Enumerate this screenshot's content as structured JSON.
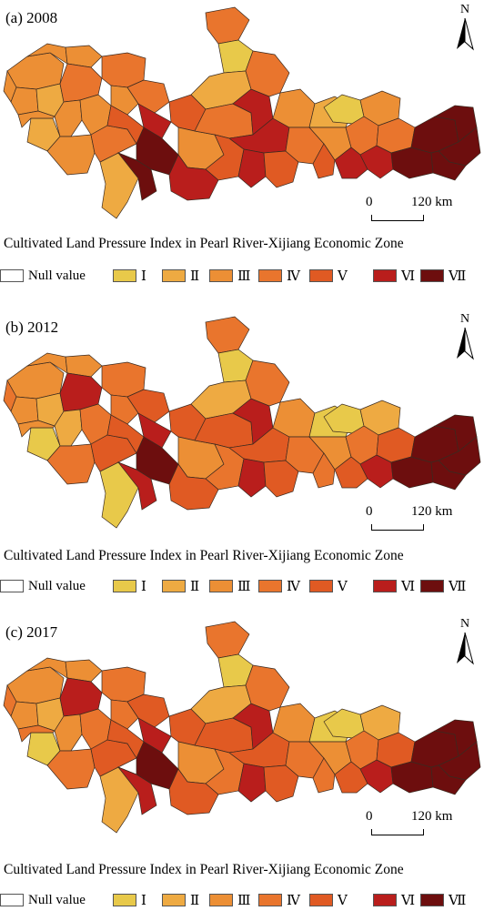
{
  "panels": [
    {
      "label": "(a) 2008",
      "north": "N",
      "scale": {
        "zero": "0",
        "distance": "120 km"
      },
      "title": "Cultivated Land Pressure Index in Pearl River-Xijiang Economic Zone",
      "regions": [
        3,
        3,
        3,
        3,
        2,
        3,
        4,
        2,
        3,
        3,
        3,
        2,
        3,
        4,
        4,
        3,
        4,
        5,
        6,
        7,
        7,
        5,
        4,
        1,
        2,
        3,
        4,
        5,
        6,
        6,
        4,
        6,
        6,
        5,
        3,
        4,
        2,
        1,
        3,
        3,
        4,
        4,
        5,
        6,
        6,
        7,
        7,
        7,
        7,
        7
      ]
    },
    {
      "label": "(b) 2012",
      "north": "N",
      "scale": {
        "zero": "0",
        "distance": "120 km"
      },
      "title": "Cultivated Land Pressure Index in Pearl River-Xijiang Economic Zone",
      "regions": [
        3,
        3,
        4,
        3,
        2,
        3,
        6,
        1,
        3,
        2,
        4,
        1,
        4,
        5,
        4,
        4,
        5,
        5,
        6,
        7,
        6,
        5,
        4,
        1,
        2,
        3,
        5,
        4,
        5,
        6,
        4,
        5,
        6,
        5,
        3,
        4,
        1,
        1,
        3,
        2,
        4,
        5,
        4,
        5,
        6,
        7,
        7,
        7,
        7,
        7
      ]
    },
    {
      "label": "(c) 2017",
      "north": "N",
      "scale": {
        "zero": "0",
        "distance": "120 km"
      },
      "title": "Cultivated Land Pressure Index in Pearl River-Xijiang Economic Zone",
      "regions": [
        3,
        3,
        4,
        3,
        2,
        3,
        6,
        1,
        4,
        3,
        4,
        2,
        4,
        5,
        4,
        4,
        5,
        5,
        6,
        7,
        6,
        5,
        4,
        1,
        2,
        3,
        5,
        4,
        5,
        6,
        4,
        5,
        6,
        5,
        3,
        4,
        1,
        1,
        3,
        2,
        4,
        5,
        4,
        5,
        6,
        7,
        7,
        7,
        7,
        7
      ]
    }
  ],
  "legend": {
    "null_label": "Null value",
    "null_color": "#ffffff",
    "classes": [
      {
        "label": "Ⅰ",
        "color": "#e8c94a"
      },
      {
        "label": "Ⅱ",
        "color": "#eeaa42"
      },
      {
        "label": "Ⅲ",
        "color": "#ec8f35"
      },
      {
        "label": "Ⅳ",
        "color": "#e9752d"
      },
      {
        "label": "Ⅴ",
        "color": "#e05a23"
      },
      {
        "label": "Ⅵ",
        "color": "#b91e1c"
      },
      {
        "label": "Ⅶ",
        "color": "#6d0e0e"
      }
    ]
  }
}
